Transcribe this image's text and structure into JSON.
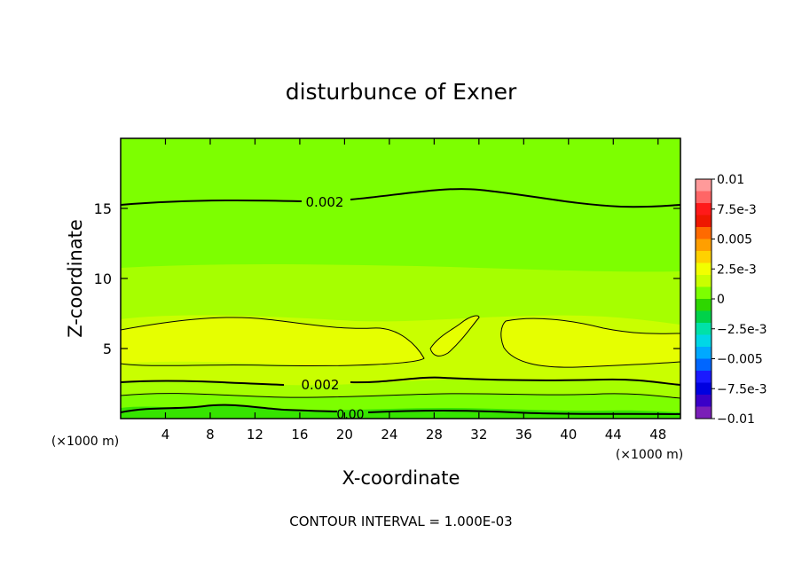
{
  "chart_data": {
    "type": "heatmap",
    "title": "disturbunce of Exner",
    "xlabel": "X-coordinate",
    "ylabel": "Z-coordinate",
    "x_unit_label": "(×1000 m)",
    "x_unit_label_left": "(×1000 m)",
    "xlim": [
      0,
      50
    ],
    "ylim": [
      0,
      20
    ],
    "x_ticks": [
      4,
      8,
      12,
      16,
      20,
      24,
      28,
      32,
      36,
      40,
      44,
      48
    ],
    "y_ticks": [
      5,
      10,
      15
    ],
    "footer": "CONTOUR INTERVAL = 1.000E-03",
    "contour_interval": 0.001,
    "contour_labels": [
      {
        "text": "0.002",
        "x": 20,
        "z": 15.5
      },
      {
        "text": "0.002",
        "x": 18,
        "z": 2.4
      },
      {
        "text": "0.00",
        "x": 22,
        "z": 0.25
      }
    ],
    "colorbar": {
      "labels": [
        "0.01",
        "7.5e-3",
        "0.005",
        "2.5e-3",
        "0",
        "−2.5e-3",
        "−0.005",
        "−7.5e-3",
        "−0.01"
      ],
      "colors": [
        "#ff9a9a",
        "#ff6666",
        "#ff1a1a",
        "#ee1800",
        "#ff6a00",
        "#ff9f00",
        "#ffd100",
        "#f2ff00",
        "#c9ff00",
        "#7dff00",
        "#2ed600",
        "#00d24a",
        "#00e1a8",
        "#00d7e6",
        "#00a9ff",
        "#0066ff",
        "#1a1aff",
        "#0000e0",
        "#3a00c8",
        "#7a1fb8"
      ]
    },
    "profile": [
      {
        "z": 0.3,
        "value": 0.0005
      },
      {
        "z": 1.5,
        "value": 0.0015
      },
      {
        "z": 3.0,
        "value": 0.0025
      },
      {
        "z": 5.5,
        "value": 0.0035
      },
      {
        "z": 8.5,
        "value": 0.003
      },
      {
        "z": 12.0,
        "value": 0.0025
      },
      {
        "z": 17.0,
        "value": 0.0015
      }
    ]
  }
}
